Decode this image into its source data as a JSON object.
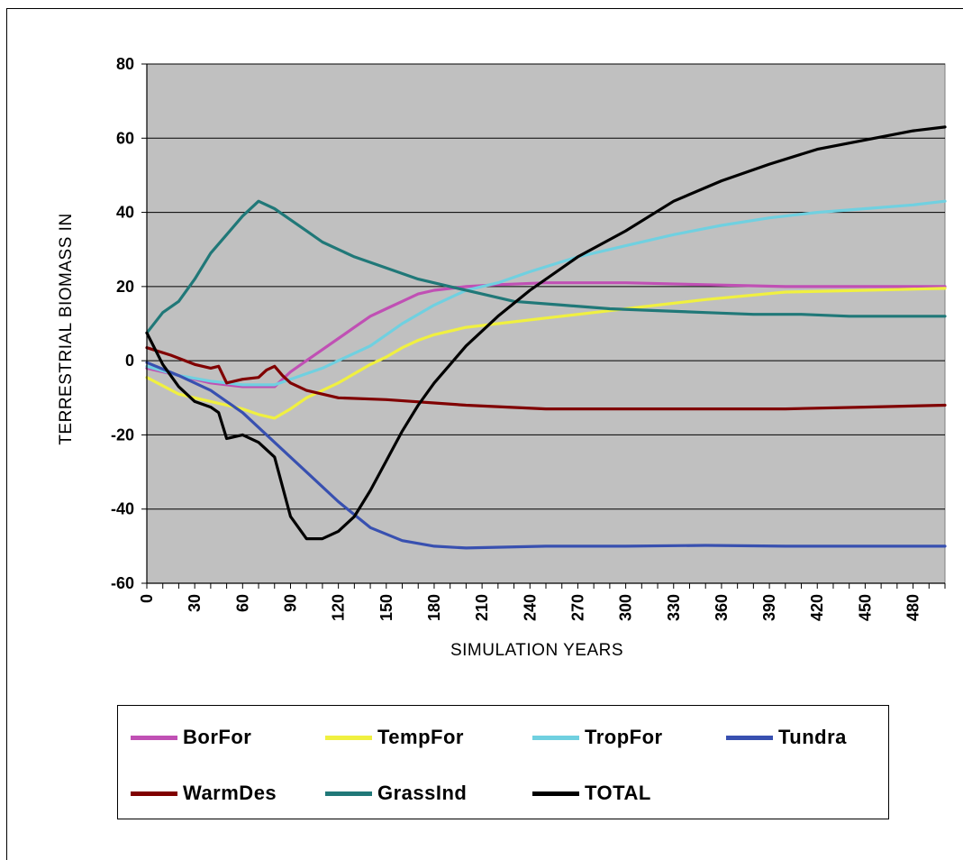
{
  "chart_data": {
    "type": "line",
    "title": "",
    "xlabel": "SIMULATION YEARS",
    "ylabel": "TERRESTRIAL BIOMASS IN",
    "xlim": [
      0,
      500
    ],
    "ylim": [
      -60,
      80
    ],
    "yticks": [
      80,
      60,
      40,
      20,
      0,
      -20,
      -40,
      -60
    ],
    "xticks": [
      0,
      30,
      60,
      90,
      120,
      150,
      180,
      210,
      240,
      270,
      300,
      330,
      360,
      390,
      420,
      450,
      480
    ],
    "grid": "horizontal",
    "plot_background": "#c0c0c0",
    "legend_position": "bottom",
    "series": [
      {
        "name": "BorFor",
        "color": "#c050b4",
        "points": [
          [
            0,
            -2
          ],
          [
            20,
            -4
          ],
          [
            40,
            -6
          ],
          [
            60,
            -7
          ],
          [
            80,
            -7
          ],
          [
            90,
            -3
          ],
          [
            100,
            0
          ],
          [
            110,
            3
          ],
          [
            120,
            6
          ],
          [
            130,
            9
          ],
          [
            140,
            12
          ],
          [
            150,
            14
          ],
          [
            160,
            16
          ],
          [
            170,
            18
          ],
          [
            180,
            19
          ],
          [
            200,
            20
          ],
          [
            220,
            20.5
          ],
          [
            250,
            21
          ],
          [
            280,
            21
          ],
          [
            300,
            21
          ],
          [
            350,
            20.5
          ],
          [
            400,
            20
          ],
          [
            450,
            20
          ],
          [
            500,
            20
          ]
        ]
      },
      {
        "name": "TempFor",
        "color": "#f0f040",
        "points": [
          [
            0,
            -4.5
          ],
          [
            20,
            -9
          ],
          [
            40,
            -11
          ],
          [
            60,
            -13
          ],
          [
            70,
            -14.5
          ],
          [
            80,
            -15.5
          ],
          [
            90,
            -13
          ],
          [
            100,
            -10
          ],
          [
            110,
            -8
          ],
          [
            120,
            -6
          ],
          [
            130,
            -3.5
          ],
          [
            140,
            -1
          ],
          [
            150,
            1
          ],
          [
            160,
            3.5
          ],
          [
            170,
            5.5
          ],
          [
            180,
            7
          ],
          [
            200,
            9
          ],
          [
            220,
            10
          ],
          [
            250,
            11.5
          ],
          [
            280,
            13
          ],
          [
            300,
            14
          ],
          [
            350,
            16.5
          ],
          [
            400,
            18.5
          ],
          [
            450,
            19
          ],
          [
            500,
            19.5
          ]
        ]
      },
      {
        "name": "TropFor",
        "color": "#70d0e0",
        "points": [
          [
            0,
            -1.5
          ],
          [
            20,
            -4
          ],
          [
            40,
            -5.5
          ],
          [
            60,
            -6.5
          ],
          [
            80,
            -6.5
          ],
          [
            90,
            -5
          ],
          [
            100,
            -3.5
          ],
          [
            110,
            -2
          ],
          [
            120,
            0
          ],
          [
            140,
            4
          ],
          [
            160,
            10
          ],
          [
            180,
            15
          ],
          [
            200,
            19
          ],
          [
            220,
            21
          ],
          [
            240,
            24
          ],
          [
            270,
            28
          ],
          [
            300,
            31
          ],
          [
            330,
            34
          ],
          [
            360,
            36.5
          ],
          [
            390,
            38.5
          ],
          [
            420,
            40
          ],
          [
            450,
            41
          ],
          [
            480,
            42
          ],
          [
            500,
            43
          ]
        ]
      },
      {
        "name": "Tundra",
        "color": "#3850b0",
        "points": [
          [
            0,
            -0.5
          ],
          [
            20,
            -4
          ],
          [
            40,
            -8
          ],
          [
            60,
            -14
          ],
          [
            80,
            -22
          ],
          [
            100,
            -30
          ],
          [
            120,
            -38
          ],
          [
            140,
            -45
          ],
          [
            160,
            -48.5
          ],
          [
            180,
            -50
          ],
          [
            200,
            -50.5
          ],
          [
            250,
            -50
          ],
          [
            300,
            -50
          ],
          [
            350,
            -49.8
          ],
          [
            400,
            -50
          ],
          [
            450,
            -50
          ],
          [
            500,
            -50
          ]
        ]
      },
      {
        "name": "WarmDes",
        "color": "#800000",
        "points": [
          [
            0,
            3.5
          ],
          [
            15,
            1.5
          ],
          [
            30,
            -1
          ],
          [
            40,
            -2
          ],
          [
            45,
            -1.5
          ],
          [
            50,
            -6
          ],
          [
            60,
            -5
          ],
          [
            70,
            -4.5
          ],
          [
            75,
            -2.5
          ],
          [
            80,
            -1.5
          ],
          [
            85,
            -4
          ],
          [
            90,
            -6
          ],
          [
            100,
            -8
          ],
          [
            120,
            -10
          ],
          [
            150,
            -10.5
          ],
          [
            200,
            -12
          ],
          [
            250,
            -13
          ],
          [
            300,
            -13
          ],
          [
            350,
            -13
          ],
          [
            400,
            -13
          ],
          [
            450,
            -12.5
          ],
          [
            500,
            -12
          ]
        ]
      },
      {
        "name": "GrassInd",
        "color": "#207878",
        "points": [
          [
            0,
            7.5
          ],
          [
            10,
            13
          ],
          [
            20,
            16
          ],
          [
            30,
            22
          ],
          [
            40,
            29
          ],
          [
            50,
            34
          ],
          [
            60,
            39
          ],
          [
            70,
            43
          ],
          [
            80,
            41
          ],
          [
            90,
            38
          ],
          [
            100,
            35
          ],
          [
            110,
            32
          ],
          [
            120,
            30
          ],
          [
            130,
            28
          ],
          [
            150,
            25
          ],
          [
            170,
            22
          ],
          [
            190,
            20
          ],
          [
            210,
            18
          ],
          [
            230,
            16
          ],
          [
            260,
            15
          ],
          [
            290,
            14
          ],
          [
            320,
            13.5
          ],
          [
            350,
            13
          ],
          [
            380,
            12.5
          ],
          [
            410,
            12.5
          ],
          [
            440,
            12
          ],
          [
            470,
            12
          ],
          [
            500,
            12
          ]
        ]
      },
      {
        "name": "TOTAL",
        "color": "#000000",
        "points": [
          [
            0,
            7.5
          ],
          [
            10,
            -1
          ],
          [
            20,
            -7
          ],
          [
            30,
            -11
          ],
          [
            40,
            -12.5
          ],
          [
            45,
            -14
          ],
          [
            50,
            -21
          ],
          [
            60,
            -20
          ],
          [
            70,
            -22
          ],
          [
            80,
            -26
          ],
          [
            90,
            -42
          ],
          [
            100,
            -48
          ],
          [
            110,
            -48
          ],
          [
            120,
            -46
          ],
          [
            130,
            -42
          ],
          [
            140,
            -35
          ],
          [
            150,
            -27
          ],
          [
            160,
            -19
          ],
          [
            170,
            -12
          ],
          [
            180,
            -6
          ],
          [
            190,
            -1
          ],
          [
            200,
            4
          ],
          [
            220,
            12
          ],
          [
            240,
            19
          ],
          [
            270,
            28
          ],
          [
            300,
            35
          ],
          [
            330,
            43
          ],
          [
            360,
            48.5
          ],
          [
            390,
            53
          ],
          [
            420,
            57
          ],
          [
            450,
            59.5
          ],
          [
            480,
            62
          ],
          [
            500,
            63
          ]
        ]
      }
    ]
  }
}
